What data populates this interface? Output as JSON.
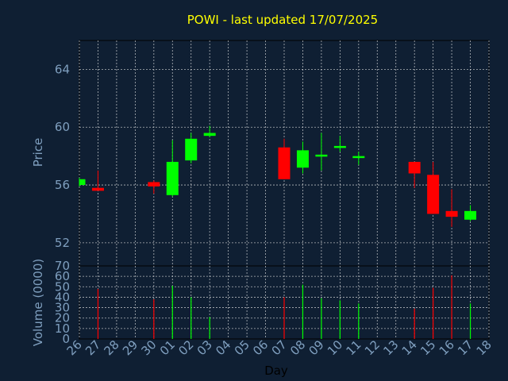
{
  "chart_data": {
    "type": "candlestick",
    "title": "POWI - last updated 17/07/2025",
    "x_label": "Day",
    "price_axis_label": "Price",
    "volume_axis_label": "Volume (0000)",
    "x_ticks": [
      "26",
      "27",
      "28",
      "29",
      "30",
      "01",
      "02",
      "03",
      "04",
      "05",
      "06",
      "07",
      "08",
      "09",
      "10",
      "11",
      "12",
      "13",
      "14",
      "15",
      "16",
      "17",
      "18"
    ],
    "price_ticks": [
      52,
      56,
      60,
      64
    ],
    "price_range": [
      50.4,
      66
    ],
    "volume_ticks": [
      0,
      10,
      20,
      30,
      40,
      50,
      60,
      70
    ],
    "volume_range": [
      0,
      70
    ],
    "grid": true,
    "colors": {
      "up": "#00ff00",
      "down": "#ff0000",
      "grid": "#e8e8e8",
      "title": "#ffff00",
      "axis_text": "#7f9fbf",
      "background": "#0f1f33"
    },
    "candles": [
      {
        "day": "26",
        "open": 56.0,
        "high": 56.5,
        "low": 55.9,
        "close": 56.4,
        "volume": null
      },
      {
        "day": "27",
        "open": 55.8,
        "high": 57.0,
        "low": 55.6,
        "close": 55.6,
        "volume": 48
      },
      {
        "day": "30",
        "open": 56.2,
        "high": 56.3,
        "low": 55.4,
        "close": 55.9,
        "volume": 38
      },
      {
        "day": "01",
        "open": 55.3,
        "high": 59.1,
        "low": 55.2,
        "close": 57.6,
        "volume": 51
      },
      {
        "day": "02",
        "open": 57.7,
        "high": 59.6,
        "low": 57.5,
        "close": 59.2,
        "volume": 40
      },
      {
        "day": "03",
        "open": 59.4,
        "high": 60.1,
        "low": 59.3,
        "close": 59.6,
        "volume": 21
      },
      {
        "day": "07",
        "open": 58.6,
        "high": 59.2,
        "low": 56.4,
        "close": 56.4,
        "volume": 40
      },
      {
        "day": "08",
        "open": 57.2,
        "high": 59.0,
        "low": 56.8,
        "close": 58.4,
        "volume": 52
      },
      {
        "day": "09",
        "open": 58.1,
        "high": 59.6,
        "low": 57.0,
        "close": 58.1,
        "volume": 39
      },
      {
        "day": "10",
        "open": 58.7,
        "high": 59.4,
        "low": 58.3,
        "close": 58.7,
        "volume": 37
      },
      {
        "day": "11",
        "open": 58.0,
        "high": 58.3,
        "low": 57.4,
        "close": 58.0,
        "volume": 34
      },
      {
        "day": "14",
        "open": 57.6,
        "high": 57.6,
        "low": 55.8,
        "close": 56.8,
        "volume": 29
      },
      {
        "day": "15",
        "open": 56.7,
        "high": 57.6,
        "low": 54.0,
        "close": 54.0,
        "volume": 49
      },
      {
        "day": "16",
        "open": 54.2,
        "high": 55.7,
        "low": 53.1,
        "close": 53.8,
        "volume": 61
      },
      {
        "day": "17",
        "open": 53.6,
        "high": 54.6,
        "low": 53.5,
        "close": 54.2,
        "volume": 34
      }
    ]
  }
}
